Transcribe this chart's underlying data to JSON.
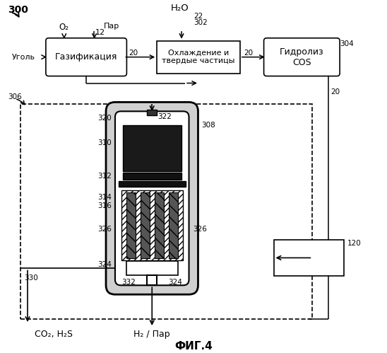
{
  "title": "ФИГ.4",
  "background": "#ffffff",
  "labels": {
    "300": "300",
    "coal": "Уголь",
    "o2": "O₂",
    "par": "Пар",
    "12": "12",
    "h2o": "H₂O",
    "22": "22",
    "302": "302",
    "gaz": "Газификация",
    "cool": "Охлаждение и\nтвердые частицы",
    "hydro": "Гидролиз\nCOS",
    "20a": "20",
    "20b": "20",
    "20c": "20",
    "304": "304",
    "306": "306",
    "308": "308",
    "310": "310",
    "312": "312",
    "314": "314",
    "316": "316",
    "320": "320",
    "322": "322",
    "324a": "324",
    "324b": "324",
    "326a": "326",
    "326b": "326",
    "330": "330",
    "332": "332",
    "120": "120",
    "co2h2s": "CO₂, H₂S",
    "h2par": "H₂ / Пар"
  }
}
